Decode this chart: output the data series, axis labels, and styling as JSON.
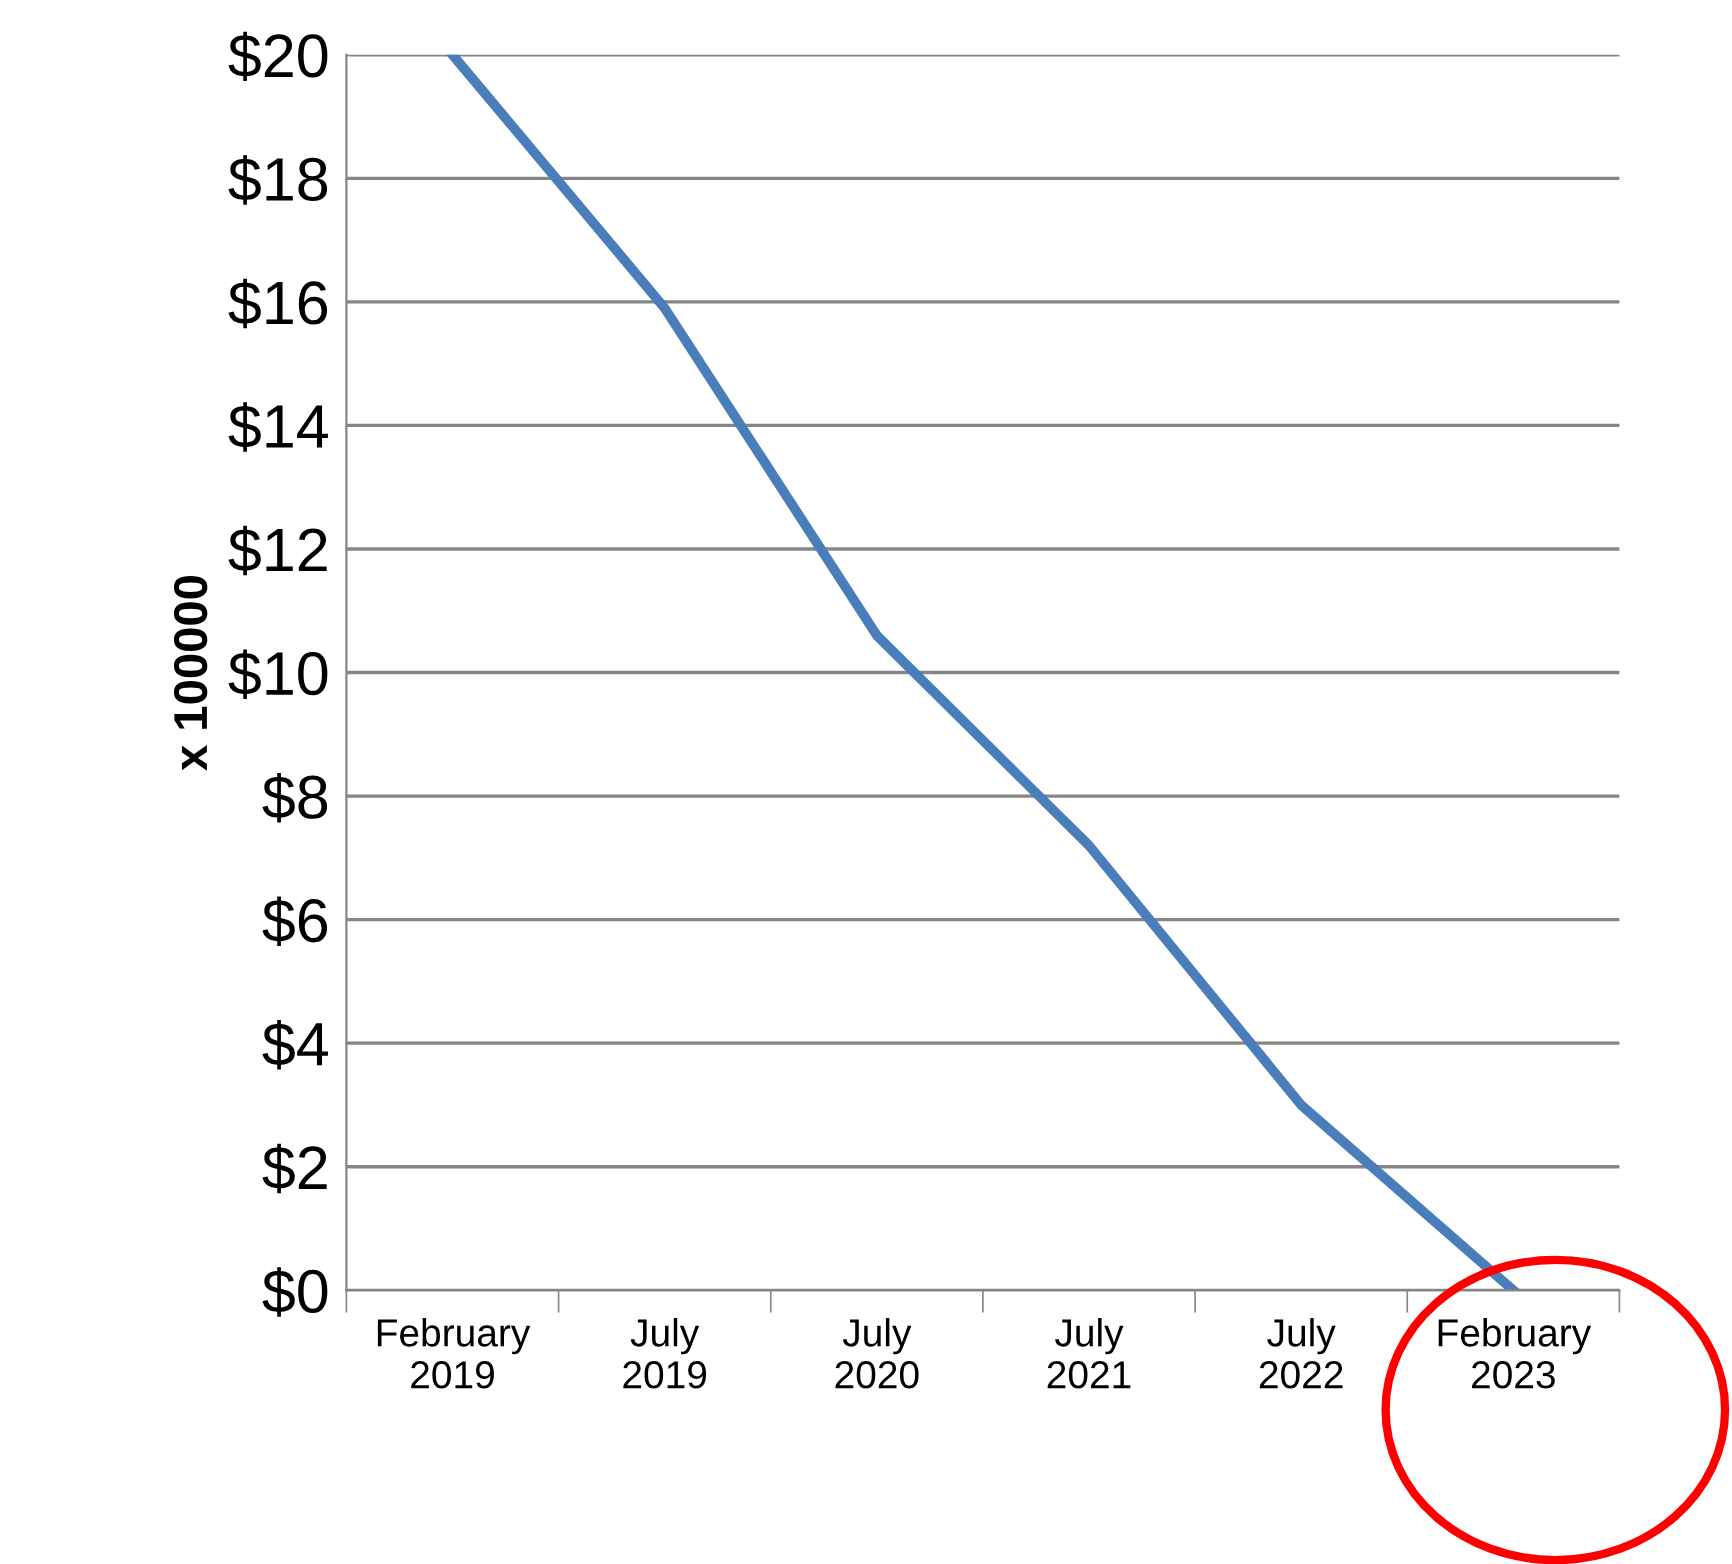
{
  "chart_data": {
    "type": "line",
    "ylabel": "x 100000",
    "categories": [
      "February\n2019",
      "July\n2019",
      "July\n2020",
      "July\n2021",
      "July\n2022",
      "February\n2023"
    ],
    "series": [
      {
        "color": "#4a7ebb",
        "values": [
          20,
          15.9,
          10.6,
          7.2,
          3.0,
          0
        ]
      }
    ],
    "ylim": [
      0,
      20
    ],
    "yticks": [
      {
        "value": 0,
        "label": "$0"
      },
      {
        "value": 2,
        "label": "$2"
      },
      {
        "value": 4,
        "label": "$4"
      },
      {
        "value": 6,
        "label": "$6"
      },
      {
        "value": 8,
        "label": "$8"
      },
      {
        "value": 10,
        "label": "$10"
      },
      {
        "value": 12,
        "label": "$12"
      },
      {
        "value": 14,
        "label": "$14"
      },
      {
        "value": 16,
        "label": "$16"
      },
      {
        "value": 18,
        "label": "$18"
      },
      {
        "value": 20,
        "label": "$20"
      }
    ],
    "grid": "y",
    "legend": false,
    "marker": "none",
    "line_style": "solid"
  }
}
